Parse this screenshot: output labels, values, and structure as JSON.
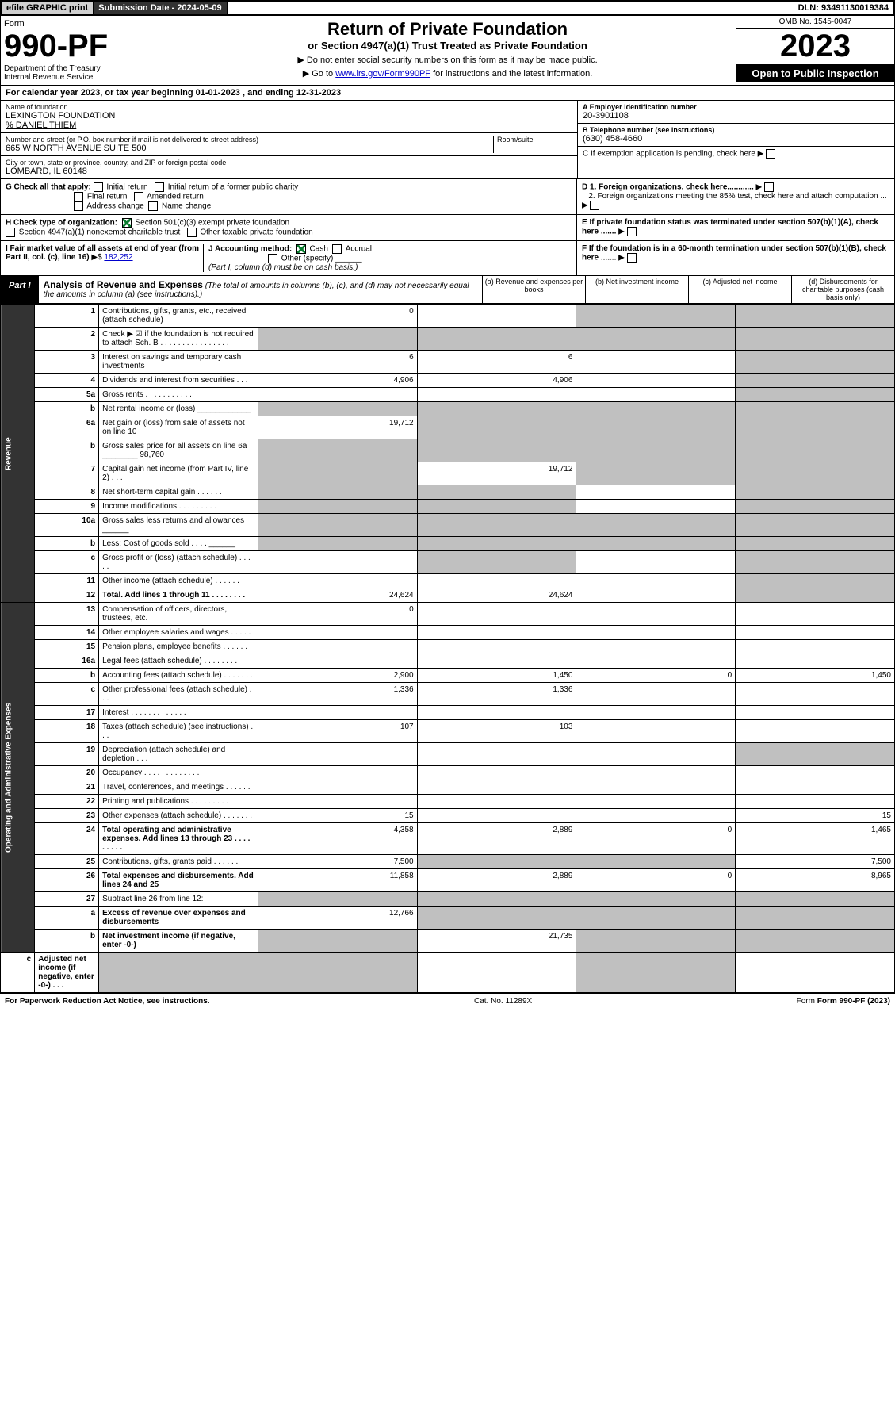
{
  "topbar": {
    "efile": "efile GRAPHIC print",
    "subdate_label": "Submission Date - ",
    "subdate": "2024-05-09",
    "dln_label": "DLN: ",
    "dln": "93491130019384"
  },
  "header": {
    "form_label": "Form",
    "form_num": "990-PF",
    "dept1": "Department of the Treasury",
    "dept2": "Internal Revenue Service",
    "title": "Return of Private Foundation",
    "subtitle": "or Section 4947(a)(1) Trust Treated as Private Foundation",
    "note1": "▶ Do not enter social security numbers on this form as it may be made public.",
    "note2_pre": "▶ Go to ",
    "note2_link": "www.irs.gov/Form990PF",
    "note2_post": " for instructions and the latest information.",
    "omb": "OMB No. 1545-0047",
    "year": "2023",
    "open": "Open to Public Inspection"
  },
  "calyear": {
    "text_pre": "For calendar year 2023, or tax year beginning ",
    "begin": "01-01-2023",
    "text_mid": " , and ending ",
    "end": "12-31-2023"
  },
  "info": {
    "name_label": "Name of foundation",
    "name": "LEXINGTON FOUNDATION",
    "care_of": "% DANIEL THIEM",
    "addr_label": "Number and street (or P.O. box number if mail is not delivered to street address)",
    "addr": "665 W NORTH AVENUE SUITE 500",
    "room_label": "Room/suite",
    "city_label": "City or town, state or province, country, and ZIP or foreign postal code",
    "city": "LOMBARD, IL  60148",
    "ein_label": "A Employer identification number",
    "ein": "20-3901108",
    "phone_label": "B Telephone number (see instructions)",
    "phone": "(630) 458-4660",
    "c_label": "C If exemption application is pending, check here",
    "d1_label": "D 1. Foreign organizations, check here............",
    "d2_label": "2. Foreign organizations meeting the 85% test, check here and attach computation ...",
    "e_label": "E If private foundation status was terminated under section 507(b)(1)(A), check here .......",
    "f_label": "F If the foundation is in a 60-month termination under section 507(b)(1)(B), check here ......."
  },
  "g": {
    "label": "G Check all that apply:",
    "opts": [
      "Initial return",
      "Final return",
      "Address change",
      "Initial return of a former public charity",
      "Amended return",
      "Name change"
    ]
  },
  "h": {
    "label": "H Check type of organization:",
    "opt1": "Section 501(c)(3) exempt private foundation",
    "opt2": "Section 4947(a)(1) nonexempt charitable trust",
    "opt3": "Other taxable private foundation"
  },
  "i": {
    "label": "I Fair market value of all assets at end of year (from Part II, col. (c), line 16)",
    "val": "182,252"
  },
  "j": {
    "label": "J Accounting method:",
    "cash": "Cash",
    "accrual": "Accrual",
    "other": "Other (specify)",
    "note": "(Part I, column (d) must be on cash basis.)"
  },
  "part1": {
    "label": "Part I",
    "title": "Analysis of Revenue and Expenses",
    "title_note": " (The total of amounts in columns (b), (c), and (d) may not necessarily equal the amounts in column (a) (see instructions).)",
    "col_a": "(a) Revenue and expenses per books",
    "col_b": "(b) Net investment income",
    "col_c": "(c) Adjusted net income",
    "col_d": "(d) Disbursements for charitable purposes (cash basis only)"
  },
  "sides": {
    "revenue": "Revenue",
    "expenses": "Operating and Administrative Expenses"
  },
  "rows": [
    {
      "n": "1",
      "d": "Contributions, gifts, grants, etc., received (attach schedule)",
      "a": "0",
      "b": "",
      "c": "g",
      "dd": "g"
    },
    {
      "n": "2",
      "d": "Check ▶ ☑ if the foundation is not required to attach Sch. B   .  .  .  .  .  .  .  .  .  .  .  .  .  .  .  .",
      "a": "g",
      "b": "g",
      "c": "g",
      "dd": "g"
    },
    {
      "n": "3",
      "d": "Interest on savings and temporary cash investments",
      "a": "6",
      "b": "6",
      "c": "",
      "dd": "g"
    },
    {
      "n": "4",
      "d": "Dividends and interest from securities   .   .   .",
      "a": "4,906",
      "b": "4,906",
      "c": "",
      "dd": "g"
    },
    {
      "n": "5a",
      "d": "Gross rents   .   .   .   .   .   .   .   .   .   .   .",
      "a": "",
      "b": "",
      "c": "",
      "dd": "g"
    },
    {
      "n": "b",
      "d": "Net rental income or (loss)  ____________",
      "a": "g",
      "b": "g",
      "c": "g",
      "dd": "g"
    },
    {
      "n": "6a",
      "d": "Net gain or (loss) from sale of assets not on line 10",
      "a": "19,712",
      "b": "g",
      "c": "g",
      "dd": "g"
    },
    {
      "n": "b",
      "d": "Gross sales price for all assets on line 6a ________ 98,760",
      "a": "g",
      "b": "g",
      "c": "g",
      "dd": "g"
    },
    {
      "n": "7",
      "d": "Capital gain net income (from Part IV, line 2)   .   .   .",
      "a": "g",
      "b": "19,712",
      "c": "g",
      "dd": "g"
    },
    {
      "n": "8",
      "d": "Net short-term capital gain   .   .   .   .   .   .",
      "a": "g",
      "b": "g",
      "c": "",
      "dd": "g"
    },
    {
      "n": "9",
      "d": "Income modifications  .   .   .   .   .   .   .   .   .",
      "a": "g",
      "b": "g",
      "c": "",
      "dd": "g"
    },
    {
      "n": "10a",
      "d": "Gross sales less returns and allowances  ______",
      "a": "g",
      "b": "g",
      "c": "g",
      "dd": "g"
    },
    {
      "n": "b",
      "d": "Less: Cost of goods sold    .   .   .   .   ______",
      "a": "g",
      "b": "g",
      "c": "g",
      "dd": "g"
    },
    {
      "n": "c",
      "d": "Gross profit or (loss) (attach schedule)   .   .   .   .   .",
      "a": "",
      "b": "g",
      "c": "",
      "dd": "g"
    },
    {
      "n": "11",
      "d": "Other income (attach schedule)   .   .   .   .   .   .",
      "a": "",
      "b": "",
      "c": "",
      "dd": "g"
    },
    {
      "n": "12",
      "d": "Total. Add lines 1 through 11   .   .   .   .   .   .   .   .",
      "a": "24,624",
      "b": "24,624",
      "c": "",
      "dd": "g",
      "bold": true
    },
    {
      "n": "13",
      "d": "Compensation of officers, directors, trustees, etc.",
      "a": "0",
      "b": "",
      "c": "",
      "dd": ""
    },
    {
      "n": "14",
      "d": "Other employee salaries and wages   .   .   .   .   .",
      "a": "",
      "b": "",
      "c": "",
      "dd": ""
    },
    {
      "n": "15",
      "d": "Pension plans, employee benefits  .   .   .   .   .   .",
      "a": "",
      "b": "",
      "c": "",
      "dd": ""
    },
    {
      "n": "16a",
      "d": "Legal fees (attach schedule)  .   .   .   .   .   .   .   .",
      "a": "",
      "b": "",
      "c": "",
      "dd": ""
    },
    {
      "n": "b",
      "d": "Accounting fees (attach schedule)  .   .   .   .   .   .   .",
      "a": "2,900",
      "b": "1,450",
      "c": "0",
      "dd": "1,450"
    },
    {
      "n": "c",
      "d": "Other professional fees (attach schedule)   .   .   .",
      "a": "1,336",
      "b": "1,336",
      "c": "",
      "dd": ""
    },
    {
      "n": "17",
      "d": "Interest  .   .   .   .   .   .   .   .   .   .   .   .   .",
      "a": "",
      "b": "",
      "c": "",
      "dd": ""
    },
    {
      "n": "18",
      "d": "Taxes (attach schedule) (see instructions)   .   .   .",
      "a": "107",
      "b": "103",
      "c": "",
      "dd": ""
    },
    {
      "n": "19",
      "d": "Depreciation (attach schedule) and depletion   .   .   .",
      "a": "",
      "b": "",
      "c": "",
      "dd": "g"
    },
    {
      "n": "20",
      "d": "Occupancy  .   .   .   .   .   .   .   .   .   .   .   .   .",
      "a": "",
      "b": "",
      "c": "",
      "dd": ""
    },
    {
      "n": "21",
      "d": "Travel, conferences, and meetings  .   .   .   .   .   .",
      "a": "",
      "b": "",
      "c": "",
      "dd": ""
    },
    {
      "n": "22",
      "d": "Printing and publications  .   .   .   .   .   .   .   .   .",
      "a": "",
      "b": "",
      "c": "",
      "dd": ""
    },
    {
      "n": "23",
      "d": "Other expenses (attach schedule)  .   .   .   .   .   .   .",
      "a": "15",
      "b": "",
      "c": "",
      "dd": "15"
    },
    {
      "n": "24",
      "d": "Total operating and administrative expenses. Add lines 13 through 23   .   .   .   .   .   .   .   .   .",
      "a": "4,358",
      "b": "2,889",
      "c": "0",
      "dd": "1,465",
      "bold": true
    },
    {
      "n": "25",
      "d": "Contributions, gifts, grants paid   .   .   .   .   .   .",
      "a": "7,500",
      "b": "g",
      "c": "g",
      "dd": "7,500"
    },
    {
      "n": "26",
      "d": "Total expenses and disbursements. Add lines 24 and 25",
      "a": "11,858",
      "b": "2,889",
      "c": "0",
      "dd": "8,965",
      "bold": true
    },
    {
      "n": "27",
      "d": "Subtract line 26 from line 12:",
      "a": "g",
      "b": "g",
      "c": "g",
      "dd": "g"
    },
    {
      "n": "a",
      "d": "Excess of revenue over expenses and disbursements",
      "a": "12,766",
      "b": "g",
      "c": "g",
      "dd": "g",
      "bold": true
    },
    {
      "n": "b",
      "d": "Net investment income (if negative, enter -0-)",
      "a": "g",
      "b": "21,735",
      "c": "g",
      "dd": "g",
      "bold": true
    },
    {
      "n": "c",
      "d": "Adjusted net income (if negative, enter -0-)   .   .   .",
      "a": "g",
      "b": "g",
      "c": "",
      "dd": "g",
      "bold": true
    }
  ],
  "footer": {
    "left": "For Paperwork Reduction Act Notice, see instructions.",
    "mid": "Cat. No. 11289X",
    "right": "Form 990-PF (2023)"
  }
}
